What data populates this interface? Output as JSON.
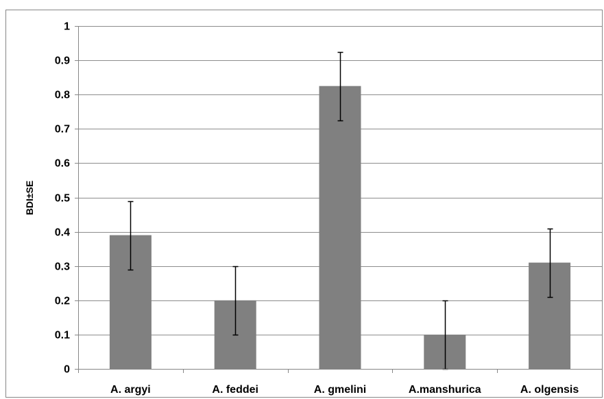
{
  "chart_data": {
    "type": "bar",
    "categories": [
      "A. argyi",
      "A. feddei",
      "A. gmelini",
      "A.manshurica",
      "A. olgensis"
    ],
    "values": [
      0.39,
      0.2,
      0.825,
      0.1,
      0.31
    ],
    "error": [
      0.1,
      0.1,
      0.1,
      0.1,
      0.1
    ],
    "title": "",
    "xlabel": "",
    "ylabel": "BDI±SE",
    "ylim": [
      0,
      1
    ],
    "yticks": [
      "0",
      "0.1",
      "0.2",
      "0.3",
      "0.4",
      "0.5",
      "0.6",
      "0.7",
      "0.8",
      "0.9",
      "1"
    ],
    "grid": true,
    "legend": "none",
    "bar_color": "#808080",
    "grid_color": "#8c8c8c",
    "axis_color": "#868686"
  }
}
